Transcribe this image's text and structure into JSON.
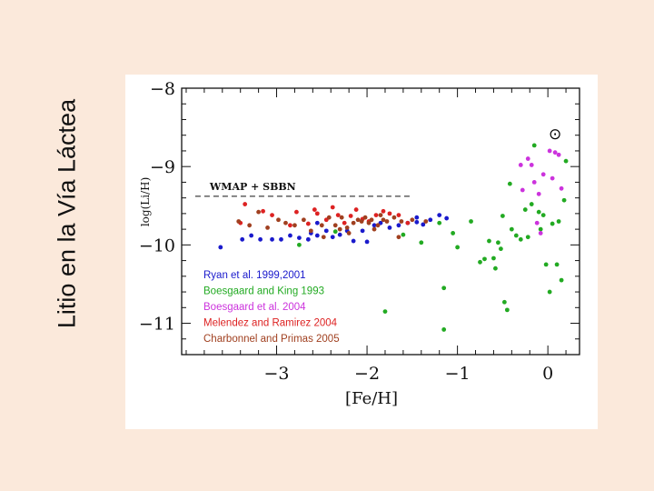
{
  "slide": {
    "title": "Litio en la Vía Láctea"
  },
  "chart_data": {
    "type": "scatter",
    "title": "",
    "xlabel": "[Fe/H]",
    "ylabel": "log(Li/H)",
    "xlim": [
      -4.05,
      0.35
    ],
    "ylim": [
      -11.4,
      -8.0
    ],
    "xticks": [
      -3,
      -2,
      -1,
      0
    ],
    "xtick_labels": [
      "−3",
      "−2",
      "−1",
      "0"
    ],
    "yticks": [
      -8,
      -9,
      -10,
      -11
    ],
    "ytick_labels": [
      "−8",
      "−9",
      "−10",
      "−11"
    ],
    "legend_position": "bottom-left",
    "annotations": {
      "wmap_label": "WMAP + SBBN",
      "wmap_value": -9.38,
      "wmap_x_range": [
        -3.9,
        -1.5
      ],
      "sun_symbol": "⊙",
      "sun_position": [
        0.08,
        -8.58
      ]
    },
    "series": [
      {
        "name": "Ryan et al. 1999,2001",
        "color": "#1a1acc",
        "points": [
          [
            -3.62,
            -10.03
          ],
          [
            -3.38,
            -9.93
          ],
          [
            -3.28,
            -9.88
          ],
          [
            -3.18,
            -9.93
          ],
          [
            -3.05,
            -9.93
          ],
          [
            -2.95,
            -9.93
          ],
          [
            -2.85,
            -9.88
          ],
          [
            -2.75,
            -9.91
          ],
          [
            -2.65,
            -9.93
          ],
          [
            -2.62,
            -9.85
          ],
          [
            -2.55,
            -9.88
          ],
          [
            -2.45,
            -9.82
          ],
          [
            -2.38,
            -9.9
          ],
          [
            -2.3,
            -9.87
          ],
          [
            -2.22,
            -9.82
          ],
          [
            -2.15,
            -9.95
          ],
          [
            -2.05,
            -9.82
          ],
          [
            -2.0,
            -9.96
          ],
          [
            -1.92,
            -9.75
          ],
          [
            -1.85,
            -9.72
          ],
          [
            -1.75,
            -9.78
          ],
          [
            -1.65,
            -9.75
          ],
          [
            -1.55,
            -9.72
          ],
          [
            -1.45,
            -9.71
          ],
          [
            -1.38,
            -9.74
          ],
          [
            -1.3,
            -9.68
          ],
          [
            -1.2,
            -9.62
          ],
          [
            -1.12,
            -9.66
          ],
          [
            -1.45,
            -9.65
          ],
          [
            -2.55,
            -9.72
          ]
        ]
      },
      {
        "name": "Boesgaard and King 1993",
        "color": "#22aa22",
        "points": [
          [
            -2.75,
            -10.0
          ],
          [
            -2.35,
            -9.83
          ],
          [
            -1.8,
            -10.85
          ],
          [
            -1.6,
            -9.87
          ],
          [
            -1.4,
            -9.97
          ],
          [
            -1.2,
            -9.72
          ],
          [
            -1.15,
            -10.55
          ],
          [
            -1.15,
            -11.08
          ],
          [
            -1.05,
            -9.85
          ],
          [
            -1.0,
            -10.03
          ],
          [
            -0.85,
            -9.7
          ],
          [
            -0.75,
            -10.22
          ],
          [
            -0.7,
            -10.18
          ],
          [
            -0.65,
            -9.95
          ],
          [
            -0.6,
            -10.17
          ],
          [
            -0.58,
            -10.3
          ],
          [
            -0.55,
            -9.97
          ],
          [
            -0.52,
            -10.05
          ],
          [
            -0.5,
            -9.63
          ],
          [
            -0.48,
            -10.73
          ],
          [
            -0.45,
            -10.83
          ],
          [
            -0.42,
            -9.22
          ],
          [
            -0.4,
            -9.8
          ],
          [
            -0.35,
            -9.88
          ],
          [
            -0.3,
            -9.93
          ],
          [
            -0.25,
            -9.55
          ],
          [
            -0.22,
            -9.9
          ],
          [
            -0.18,
            -9.48
          ],
          [
            -0.15,
            -8.73
          ],
          [
            -0.1,
            -9.58
          ],
          [
            -0.08,
            -9.8
          ],
          [
            -0.05,
            -9.62
          ],
          [
            -0.02,
            -10.25
          ],
          [
            0.02,
            -10.6
          ],
          [
            0.05,
            -9.73
          ],
          [
            0.12,
            -9.7
          ],
          [
            0.15,
            -10.45
          ],
          [
            0.18,
            -9.43
          ],
          [
            0.2,
            -8.93
          ],
          [
            0.1,
            -10.25
          ]
        ]
      },
      {
        "name": "Boesgaard et al. 2004",
        "color": "#cc33dd",
        "points": [
          [
            -0.3,
            -8.98
          ],
          [
            -0.28,
            -9.3
          ],
          [
            -0.22,
            -8.9
          ],
          [
            -0.18,
            -8.98
          ],
          [
            -0.15,
            -9.2
          ],
          [
            -0.1,
            -9.35
          ],
          [
            -0.08,
            -9.85
          ],
          [
            -0.05,
            -9.1
          ],
          [
            0.02,
            -8.8
          ],
          [
            0.05,
            -9.15
          ],
          [
            0.08,
            -8.82
          ],
          [
            0.12,
            -8.85
          ],
          [
            0.15,
            -9.28
          ],
          [
            -0.12,
            -9.72
          ]
        ]
      },
      {
        "name": "Melendez and Ramirez 2004",
        "color": "#dd2222",
        "points": [
          [
            -3.4,
            -9.72
          ],
          [
            -3.35,
            -9.48
          ],
          [
            -3.15,
            -9.57
          ],
          [
            -3.05,
            -9.62
          ],
          [
            -2.85,
            -9.75
          ],
          [
            -2.78,
            -9.58
          ],
          [
            -2.65,
            -9.73
          ],
          [
            -2.55,
            -9.6
          ],
          [
            -2.45,
            -9.68
          ],
          [
            -2.38,
            -9.52
          ],
          [
            -2.32,
            -9.62
          ],
          [
            -2.25,
            -9.72
          ],
          [
            -2.18,
            -9.63
          ],
          [
            -2.12,
            -9.55
          ],
          [
            -2.05,
            -9.67
          ],
          [
            -1.98,
            -9.7
          ],
          [
            -1.9,
            -9.62
          ],
          [
            -1.82,
            -9.57
          ],
          [
            -1.75,
            -9.6
          ],
          [
            -1.65,
            -9.62
          ],
          [
            -1.55,
            -9.72
          ],
          [
            -2.58,
            -9.55
          ]
        ]
      },
      {
        "name": "Charbonnel and Primas 2005",
        "color": "#a04020",
        "points": [
          [
            -3.42,
            -9.7
          ],
          [
            -3.3,
            -9.75
          ],
          [
            -3.2,
            -9.58
          ],
          [
            -3.1,
            -9.78
          ],
          [
            -2.98,
            -9.68
          ],
          [
            -2.9,
            -9.72
          ],
          [
            -2.8,
            -9.75
          ],
          [
            -2.7,
            -9.68
          ],
          [
            -2.62,
            -9.82
          ],
          [
            -2.5,
            -9.75
          ],
          [
            -2.42,
            -9.65
          ],
          [
            -2.35,
            -9.75
          ],
          [
            -2.28,
            -9.65
          ],
          [
            -2.22,
            -9.78
          ],
          [
            -2.15,
            -9.72
          ],
          [
            -2.1,
            -9.68
          ],
          [
            -2.06,
            -9.7
          ],
          [
            -2.02,
            -9.65
          ],
          [
            -1.98,
            -9.72
          ],
          [
            -1.95,
            -9.68
          ],
          [
            -1.92,
            -9.8
          ],
          [
            -1.88,
            -9.75
          ],
          [
            -1.85,
            -9.62
          ],
          [
            -1.82,
            -9.68
          ],
          [
            -1.78,
            -9.7
          ],
          [
            -1.7,
            -9.65
          ],
          [
            -1.62,
            -9.7
          ],
          [
            -1.5,
            -9.68
          ],
          [
            -1.35,
            -9.7
          ],
          [
            -2.48,
            -9.9
          ],
          [
            -2.3,
            -9.8
          ],
          [
            -2.2,
            -9.85
          ],
          [
            -1.65,
            -9.9
          ]
        ]
      }
    ]
  }
}
